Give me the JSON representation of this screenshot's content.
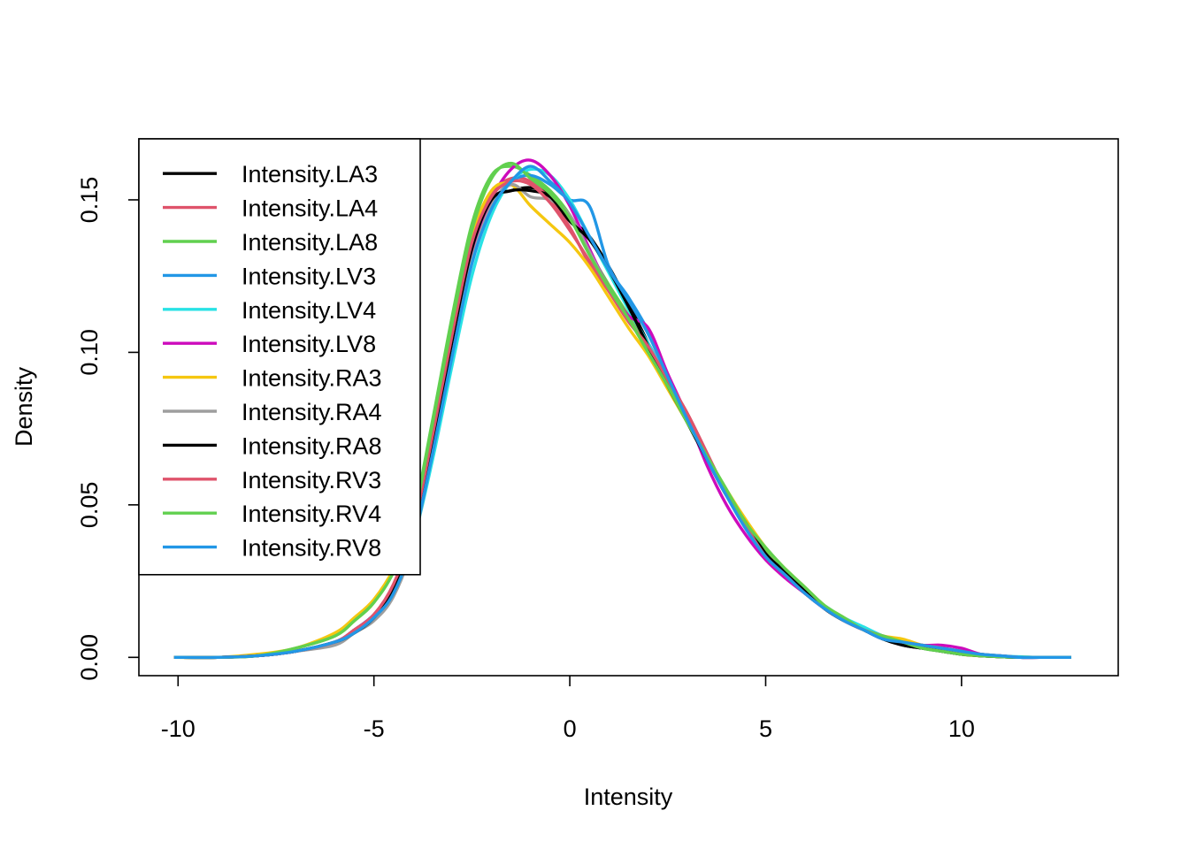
{
  "chart_data": {
    "type": "line",
    "title": "",
    "xlabel": "Intensity",
    "ylabel": "Density",
    "xlim": [
      -11,
      14
    ],
    "ylim": [
      -0.006,
      0.17
    ],
    "x_ticks": [
      -10,
      -5,
      0,
      5,
      10
    ],
    "x_tick_labels": [
      "-10",
      "-5",
      "0",
      "5",
      "10"
    ],
    "y_ticks": [
      0,
      0.05,
      0.1,
      0.15
    ],
    "y_tick_labels": [
      "0.00",
      "0.05",
      "0.10",
      "0.15"
    ],
    "grid": false,
    "legend_position": "top-left",
    "x": [
      -10.1,
      -9,
      -8,
      -7,
      -6,
      -5.5,
      -5,
      -4.5,
      -4,
      -3.5,
      -3,
      -2.5,
      -2,
      -1.5,
      -1,
      -0.5,
      0,
      0.5,
      1,
      1.5,
      2,
      2.5,
      3,
      3.5,
      4,
      4.5,
      5,
      5.5,
      6,
      6.5,
      7,
      7.5,
      8,
      8.5,
      9,
      9.5,
      10,
      10.5,
      11,
      11.5,
      12,
      12.8
    ],
    "series": [
      {
        "name": "Intensity.LA3",
        "color": "#000000",
        "values": [
          0,
          0,
          0.0005,
          0.002,
          0.005,
          0.009,
          0.014,
          0.023,
          0.041,
          0.072,
          0.105,
          0.135,
          0.15,
          0.153,
          0.154,
          0.152,
          0.144,
          0.138,
          0.128,
          0.116,
          0.103,
          0.09,
          0.077,
          0.065,
          0.053,
          0.044,
          0.034,
          0.028,
          0.022,
          0.016,
          0.012,
          0.009,
          0.006,
          0.004,
          0.003,
          0.002,
          0.001,
          0.0005,
          0.0002,
          0,
          0,
          0
        ]
      },
      {
        "name": "Intensity.LA4",
        "color": "#DF536B",
        "values": [
          0,
          0,
          0.0005,
          0.002,
          0.005,
          0.009,
          0.014,
          0.024,
          0.042,
          0.074,
          0.107,
          0.137,
          0.152,
          0.157,
          0.156,
          0.15,
          0.141,
          0.129,
          0.12,
          0.111,
          0.103,
          0.091,
          0.08,
          0.067,
          0.054,
          0.043,
          0.033,
          0.027,
          0.021,
          0.016,
          0.012,
          0.009,
          0.007,
          0.005,
          0.004,
          0.003,
          0.002,
          0.001,
          0.0005,
          0,
          0,
          0
        ]
      },
      {
        "name": "Intensity.LA8",
        "color": "#61D04F",
        "values": [
          0,
          0,
          0.0005,
          0.003,
          0.007,
          0.012,
          0.018,
          0.029,
          0.046,
          0.078,
          0.112,
          0.142,
          0.158,
          0.161,
          0.158,
          0.153,
          0.145,
          0.133,
          0.122,
          0.112,
          0.101,
          0.09,
          0.078,
          0.066,
          0.055,
          0.044,
          0.035,
          0.029,
          0.023,
          0.017,
          0.013,
          0.009,
          0.007,
          0.005,
          0.003,
          0.002,
          0.001,
          0.0005,
          0.0002,
          0,
          0,
          0
        ]
      },
      {
        "name": "Intensity.LV3",
        "color": "#2297E6",
        "values": [
          0,
          0,
          0.0005,
          0.002,
          0.005,
          0.008,
          0.013,
          0.022,
          0.039,
          0.068,
          0.1,
          0.13,
          0.148,
          0.156,
          0.158,
          0.155,
          0.15,
          0.148,
          0.128,
          0.118,
          0.107,
          0.092,
          0.078,
          0.065,
          0.053,
          0.042,
          0.033,
          0.027,
          0.021,
          0.016,
          0.012,
          0.009,
          0.006,
          0.005,
          0.004,
          0.003,
          0.002,
          0.001,
          0.0005,
          0,
          0,
          0
        ]
      },
      {
        "name": "Intensity.LV4",
        "color": "#28E2E5",
        "values": [
          0,
          0,
          0.0005,
          0.002,
          0.005,
          0.009,
          0.014,
          0.022,
          0.038,
          0.065,
          0.096,
          0.125,
          0.145,
          0.156,
          0.16,
          0.158,
          0.15,
          0.138,
          0.126,
          0.114,
          0.103,
          0.091,
          0.079,
          0.066,
          0.054,
          0.043,
          0.034,
          0.028,
          0.022,
          0.017,
          0.013,
          0.01,
          0.007,
          0.005,
          0.004,
          0.003,
          0.002,
          0.001,
          0.0005,
          0.0002,
          0,
          0
        ]
      },
      {
        "name": "Intensity.LV8",
        "color": "#CD0BBC",
        "values": [
          0,
          0,
          0.0005,
          0.002,
          0.005,
          0.009,
          0.014,
          0.023,
          0.04,
          0.07,
          0.102,
          0.132,
          0.15,
          0.16,
          0.163,
          0.158,
          0.148,
          0.134,
          0.121,
          0.112,
          0.108,
          0.093,
          0.079,
          0.063,
          0.05,
          0.04,
          0.032,
          0.026,
          0.021,
          0.016,
          0.012,
          0.009,
          0.006,
          0.005,
          0.004,
          0.004,
          0.003,
          0.001,
          0.0005,
          0,
          0,
          0
        ]
      },
      {
        "name": "Intensity.RA3",
        "color": "#F5C710",
        "values": [
          0,
          0,
          0.001,
          0.003,
          0.008,
          0.013,
          0.019,
          0.029,
          0.045,
          0.076,
          0.109,
          0.138,
          0.153,
          0.155,
          0.148,
          0.142,
          0.136,
          0.128,
          0.118,
          0.108,
          0.099,
          0.088,
          0.077,
          0.066,
          0.055,
          0.045,
          0.036,
          0.029,
          0.023,
          0.017,
          0.013,
          0.009,
          0.007,
          0.006,
          0.004,
          0.003,
          0.001,
          0.0005,
          0.0002,
          0,
          0,
          0
        ]
      },
      {
        "name": "Intensity.RA4",
        "color": "#9E9E9E",
        "values": [
          0,
          0,
          0.0005,
          0.002,
          0.004,
          0.008,
          0.012,
          0.02,
          0.037,
          0.068,
          0.1,
          0.13,
          0.148,
          0.155,
          0.151,
          0.15,
          0.145,
          0.133,
          0.121,
          0.111,
          0.101,
          0.09,
          0.078,
          0.066,
          0.054,
          0.043,
          0.034,
          0.028,
          0.022,
          0.016,
          0.012,
          0.009,
          0.006,
          0.005,
          0.003,
          0.002,
          0.001,
          0.0005,
          0.0002,
          0,
          0,
          0
        ]
      },
      {
        "name": "Intensity.RA8",
        "color": "#000000",
        "values": [
          0,
          0,
          0.0005,
          0.002,
          0.005,
          0.008,
          0.013,
          0.022,
          0.04,
          0.071,
          0.104,
          0.134,
          0.15,
          0.153,
          0.153,
          0.151,
          0.143,
          0.137,
          0.127,
          0.115,
          0.102,
          0.089,
          0.077,
          0.065,
          0.054,
          0.044,
          0.034,
          0.028,
          0.022,
          0.016,
          0.012,
          0.009,
          0.006,
          0.004,
          0.003,
          0.002,
          0.001,
          0.0005,
          0.0002,
          0,
          0,
          0
        ]
      },
      {
        "name": "Intensity.RV3",
        "color": "#DF536B",
        "values": [
          0,
          0,
          0.0005,
          0.002,
          0.005,
          0.009,
          0.014,
          0.024,
          0.042,
          0.073,
          0.106,
          0.136,
          0.151,
          0.156,
          0.155,
          0.149,
          0.14,
          0.13,
          0.12,
          0.11,
          0.102,
          0.091,
          0.08,
          0.067,
          0.054,
          0.043,
          0.033,
          0.027,
          0.021,
          0.016,
          0.012,
          0.009,
          0.007,
          0.005,
          0.004,
          0.003,
          0.002,
          0.001,
          0.0005,
          0,
          0,
          0
        ]
      },
      {
        "name": "Intensity.RV4",
        "color": "#61D04F",
        "values": [
          0,
          0,
          0.0005,
          0.003,
          0.007,
          0.012,
          0.018,
          0.028,
          0.045,
          0.077,
          0.11,
          0.14,
          0.157,
          0.162,
          0.157,
          0.152,
          0.144,
          0.132,
          0.121,
          0.111,
          0.1,
          0.089,
          0.077,
          0.066,
          0.055,
          0.044,
          0.036,
          0.029,
          0.023,
          0.017,
          0.013,
          0.009,
          0.007,
          0.005,
          0.003,
          0.002,
          0.001,
          0.0005,
          0.0002,
          0,
          0,
          0
        ]
      },
      {
        "name": "Intensity.RV8",
        "color": "#2297E6",
        "values": [
          0,
          0,
          0.0005,
          0.002,
          0.005,
          0.008,
          0.013,
          0.021,
          0.038,
          0.067,
          0.099,
          0.129,
          0.147,
          0.156,
          0.161,
          0.156,
          0.149,
          0.138,
          0.127,
          0.117,
          0.106,
          0.092,
          0.078,
          0.065,
          0.053,
          0.042,
          0.033,
          0.027,
          0.021,
          0.016,
          0.012,
          0.009,
          0.006,
          0.005,
          0.004,
          0.003,
          0.002,
          0.001,
          0.0005,
          0,
          0,
          0
        ]
      }
    ]
  }
}
